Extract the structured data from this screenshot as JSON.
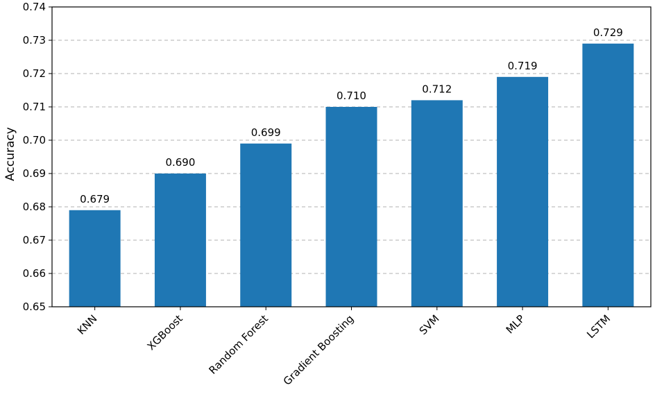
{
  "chart_data": {
    "type": "bar",
    "title": "",
    "xlabel": "",
    "ylabel": "Accuracy",
    "categories": [
      "KNN",
      "XGBoost",
      "Random Forest",
      "Gradient Boosting",
      "SVM",
      "MLP",
      "LSTM"
    ],
    "values": [
      0.679,
      0.69,
      0.699,
      0.71,
      0.712,
      0.719,
      0.729
    ],
    "data_labels": [
      "0.679",
      "0.690",
      "0.699",
      "0.710",
      "0.712",
      "0.719",
      "0.729"
    ],
    "ylim": [
      0.65,
      0.74
    ],
    "yticks": [
      0.65,
      0.66,
      0.67,
      0.68,
      0.69,
      0.7,
      0.71,
      0.72,
      0.73,
      0.74
    ],
    "ytick_labels": [
      "0.65",
      "0.66",
      "0.67",
      "0.68",
      "0.69",
      "0.70",
      "0.71",
      "0.72",
      "0.73",
      "0.74"
    ],
    "grid": "y-dashed",
    "legend": "none",
    "bar_color": "#1f77b4"
  }
}
